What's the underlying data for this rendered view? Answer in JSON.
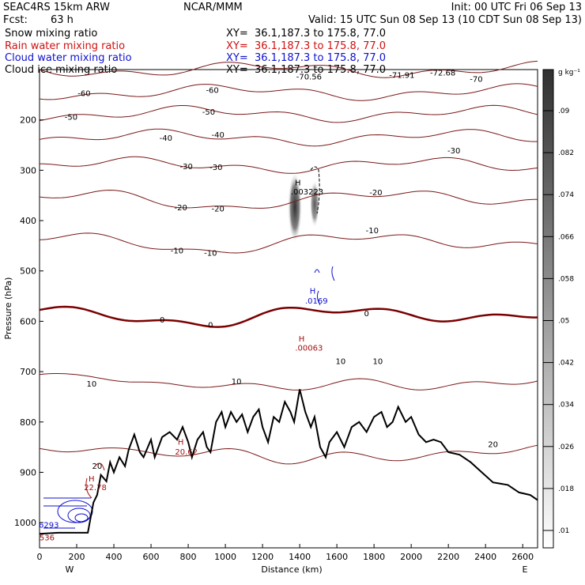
{
  "header": {
    "model": "SEAC4RS 15km ARW",
    "fcst_label": "Fcst:",
    "fcst_hours": "63 h",
    "org": "NCAR/MMM",
    "init": "Init: 00 UTC Fri 06 Sep 13",
    "valid": "Valid: 15 UTC Sun 08 Sep 13 (10 CDT Sun 08 Sep 13)"
  },
  "fields": [
    {
      "label": "Snow mixing ratio",
      "xy": "XY=  36.1,187.3 to 175.8, 77.0",
      "color": "#000000"
    },
    {
      "label": "Rain water mixing ratio",
      "xy": "XY=  36.1,187.3 to 175.8, 77.0",
      "color": "#d01010"
    },
    {
      "label": "Cloud water mixing ratio",
      "xy": "XY=  36.1,187.3 to 175.8, 77.0",
      "color": "#1010d0"
    },
    {
      "label": "Cloud ice mixing ratio",
      "xy": "XY=  36.1,187.3 to 175.8, 77.0",
      "color": "#000000"
    }
  ],
  "chart_data": {
    "type": "cross-section",
    "xlabel": "Distance (km)",
    "ylabel": "Pressure (hPa)",
    "xlim": [
      0,
      2680
    ],
    "ylim": [
      1050,
      100
    ],
    "x_ticks": [
      0,
      200,
      400,
      600,
      800,
      1000,
      1200,
      1400,
      1600,
      1800,
      2000,
      2200,
      2400,
      2600
    ],
    "y_ticks": [
      200,
      300,
      400,
      500,
      600,
      700,
      800,
      900,
      1000
    ],
    "x_end_labels": {
      "left": "W",
      "right": "E"
    },
    "temperature_contours": [
      {
        "value": -70,
        "p": 100
      },
      {
        "value": -60,
        "p": 145
      },
      {
        "value": -50,
        "p": 188
      },
      {
        "value": -40,
        "p": 235
      },
      {
        "value": -30,
        "p": 290
      },
      {
        "value": -20,
        "p": 355
      },
      {
        "value": -10,
        "p": 440
      },
      {
        "value": 0,
        "p": 585
      },
      {
        "value": 10,
        "p": 720
      },
      {
        "value": 20,
        "p": 860
      }
    ],
    "contour_labels": [
      {
        "text": "-70.56",
        "x": 1450,
        "p": 115
      },
      {
        "text": "-71.91",
        "x": 1950,
        "p": 112
      },
      {
        "text": "-72.68",
        "x": 2170,
        "p": 107
      },
      {
        "text": "-70",
        "x": 2350,
        "p": 120
      },
      {
        "text": "-60",
        "x": 240,
        "p": 148
      },
      {
        "text": "-60",
        "x": 930,
        "p": 142
      },
      {
        "text": "-50",
        "x": 170,
        "p": 195
      },
      {
        "text": "-50",
        "x": 910,
        "p": 185
      },
      {
        "text": "-40",
        "x": 680,
        "p": 237
      },
      {
        "text": "-40",
        "x": 960,
        "p": 230
      },
      {
        "text": "-30",
        "x": 790,
        "p": 293
      },
      {
        "text": "-30",
        "x": 950,
        "p": 295
      },
      {
        "text": "-30",
        "x": 2230,
        "p": 262
      },
      {
        "text": "-20",
        "x": 760,
        "p": 375
      },
      {
        "text": "-20",
        "x": 960,
        "p": 377
      },
      {
        "text": "-20",
        "x": 1810,
        "p": 345
      },
      {
        "text": "-10",
        "x": 740,
        "p": 460
      },
      {
        "text": "-10",
        "x": 920,
        "p": 465
      },
      {
        "text": "-10",
        "x": 1790,
        "p": 420
      },
      {
        "text": "0",
        "x": 660,
        "p": 598
      },
      {
        "text": "0",
        "x": 920,
        "p": 608
      },
      {
        "text": "0",
        "x": 1760,
        "p": 585
      },
      {
        "text": "10",
        "x": 280,
        "p": 725
      },
      {
        "text": "10",
        "x": 1060,
        "p": 720
      },
      {
        "text": "10",
        "x": 1620,
        "p": 680
      },
      {
        "text": "10",
        "x": 1820,
        "p": 680
      },
      {
        "text": "20",
        "x": 2440,
        "p": 845
      },
      {
        "text": "20",
        "x": 310,
        "p": 888
      }
    ],
    "maxima_labels": [
      {
        "text": "H",
        "x": 1390,
        "p": 330,
        "color": "#000000"
      },
      {
        "text": ".003223",
        "x": 1440,
        "p": 348,
        "color": "#000000"
      },
      {
        "text": "H",
        "x": 1470,
        "p": 545,
        "color": "#1010d0"
      },
      {
        "text": ".0169",
        "x": 1490,
        "p": 565,
        "color": "#1010d0"
      },
      {
        "text": "H",
        "x": 1410,
        "p": 640,
        "color": "#a01010"
      },
      {
        "text": ".00063",
        "x": 1450,
        "p": 658,
        "color": "#a01010"
      },
      {
        "text": "H",
        "x": 760,
        "p": 845,
        "color": "#a01010"
      },
      {
        "text": "20.62",
        "x": 790,
        "p": 865,
        "color": "#a01010"
      },
      {
        "text": "H",
        "x": 280,
        "p": 918,
        "color": "#a01010"
      },
      {
        "text": "22.78",
        "x": 300,
        "p": 935,
        "color": "#a01010"
      },
      {
        "text": "6293",
        "x": 50,
        "p": 1010,
        "color": "#1010d0"
      },
      {
        "text": "536",
        "x": 40,
        "p": 1035,
        "color": "#a01010"
      }
    ],
    "terrain": [
      [
        0,
        1022
      ],
      [
        100,
        1020
      ],
      [
        260,
        1020
      ],
      [
        290,
        960
      ],
      [
        310,
        945
      ],
      [
        330,
        905
      ],
      [
        360,
        918
      ],
      [
        380,
        880
      ],
      [
        400,
        900
      ],
      [
        430,
        870
      ],
      [
        460,
        888
      ],
      [
        480,
        855
      ],
      [
        510,
        825
      ],
      [
        540,
        860
      ],
      [
        560,
        870
      ],
      [
        600,
        835
      ],
      [
        620,
        870
      ],
      [
        660,
        830
      ],
      [
        700,
        820
      ],
      [
        740,
        835
      ],
      [
        770,
        810
      ],
      [
        800,
        840
      ],
      [
        820,
        870
      ],
      [
        850,
        835
      ],
      [
        880,
        820
      ],
      [
        900,
        850
      ],
      [
        920,
        860
      ],
      [
        950,
        800
      ],
      [
        980,
        780
      ],
      [
        1000,
        810
      ],
      [
        1030,
        780
      ],
      [
        1060,
        800
      ],
      [
        1090,
        785
      ],
      [
        1120,
        820
      ],
      [
        1150,
        790
      ],
      [
        1180,
        775
      ],
      [
        1200,
        810
      ],
      [
        1230,
        840
      ],
      [
        1260,
        790
      ],
      [
        1290,
        800
      ],
      [
        1320,
        760
      ],
      [
        1350,
        780
      ],
      [
        1370,
        800
      ],
      [
        1400,
        735
      ],
      [
        1430,
        780
      ],
      [
        1460,
        810
      ],
      [
        1480,
        790
      ],
      [
        1510,
        850
      ],
      [
        1540,
        870
      ],
      [
        1560,
        840
      ],
      [
        1600,
        820
      ],
      [
        1640,
        850
      ],
      [
        1680,
        810
      ],
      [
        1720,
        800
      ],
      [
        1760,
        820
      ],
      [
        1800,
        790
      ],
      [
        1840,
        780
      ],
      [
        1870,
        810
      ],
      [
        1900,
        800
      ],
      [
        1930,
        770
      ],
      [
        1970,
        800
      ],
      [
        2000,
        790
      ],
      [
        2040,
        825
      ],
      [
        2080,
        840
      ],
      [
        2120,
        835
      ],
      [
        2160,
        840
      ],
      [
        2200,
        860
      ],
      [
        2260,
        865
      ],
      [
        2320,
        880
      ],
      [
        2380,
        900
      ],
      [
        2440,
        920
      ],
      [
        2520,
        925
      ],
      [
        2580,
        940
      ],
      [
        2640,
        945
      ],
      [
        2680,
        955
      ]
    ],
    "colorbar": {
      "unit": "g kg⁻¹",
      "ticks": [
        ".01",
        ".018",
        ".026",
        ".034",
        ".042",
        ".05",
        ".058",
        ".066",
        ".074",
        ".082",
        ".09"
      ]
    }
  }
}
